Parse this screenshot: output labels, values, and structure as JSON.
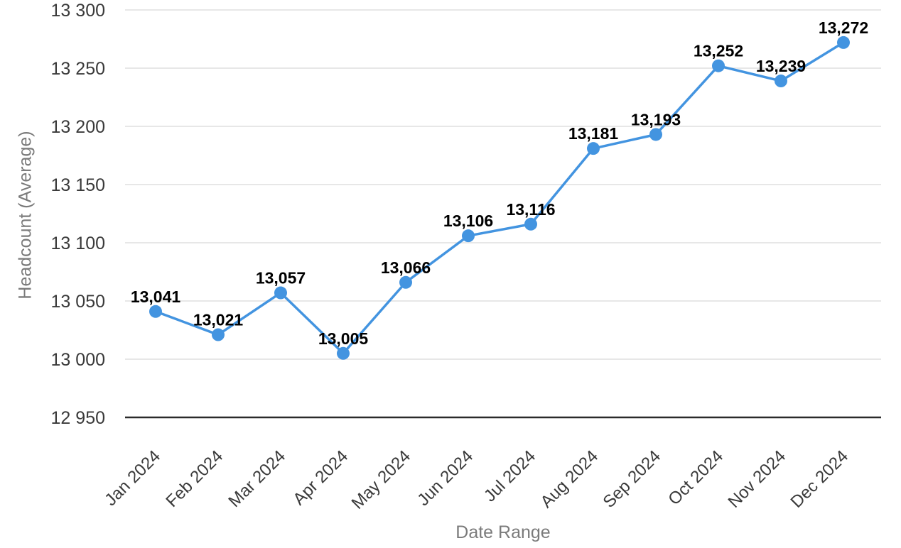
{
  "chart_data": {
    "type": "line",
    "xlabel": "Date Range",
    "ylabel": "Headcount (Average)",
    "categories": [
      "Jan 2024",
      "Feb 2024",
      "Mar 2024",
      "Apr 2024",
      "May 2024",
      "Jun 2024",
      "Jul 2024",
      "Aug 2024",
      "Sep 2024",
      "Oct 2024",
      "Nov 2024",
      "Dec 2024"
    ],
    "values": [
      13041,
      13021,
      13057,
      13005,
      13066,
      13106,
      13116,
      13181,
      13193,
      13252,
      13239,
      13272
    ],
    "point_labels": [
      "13,041",
      "13,021",
      "13,057",
      "13,005",
      "13,066",
      "13,106",
      "13,116",
      "13,181",
      "13,193",
      "13,252",
      "13,239",
      "13,272"
    ],
    "ylim": [
      12950,
      13300
    ],
    "ytick_step": 50,
    "ytick_labels": [
      "12 950",
      "13 000",
      "13 050",
      "13 100",
      "13 150",
      "13 200",
      "13 250",
      "13 300"
    ],
    "grid": true,
    "legend": "none",
    "colors": {
      "line": "#4394e0",
      "point": "#4394e0",
      "value_label": "#000000",
      "tick_label": "#3a3a3a",
      "axis_title": "#7b7b7b",
      "gridline": "#e7e7e7",
      "axis_line": "#2b2b2b",
      "background": "#ffffff"
    }
  }
}
